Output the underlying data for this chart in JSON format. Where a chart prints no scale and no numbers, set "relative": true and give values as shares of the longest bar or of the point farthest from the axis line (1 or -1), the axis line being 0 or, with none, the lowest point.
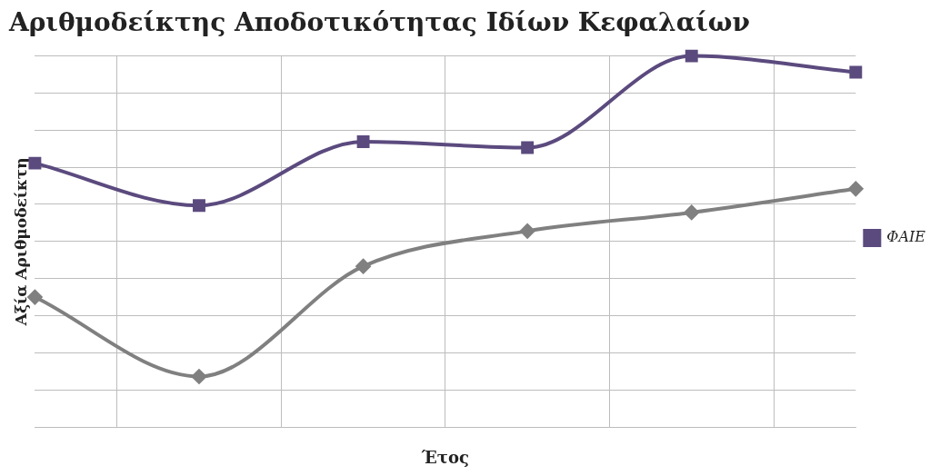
{
  "chart_data": {
    "type": "line",
    "title": "Αριθμοδείκτης Αποδοτικότητας Ιδίων Κεφαλαίων",
    "xlabel": "Έτος",
    "ylabel": "Αξία Αριθμοδείκτη",
    "categories": [
      null,
      null,
      null,
      null,
      null,
      null
    ],
    "relative": true,
    "grid": true,
    "legend": "right",
    "series": [
      {
        "name": "ΦΑΙΕ",
        "color": "#5b4a7e",
        "marker": "square",
        "values": [
          0.711,
          0.597,
          0.769,
          0.753,
          1,
          0.956
        ]
      },
      {
        "color": "#808080",
        "marker": "diamond",
        "values": [
          0.35,
          0.136,
          0.433,
          0.528,
          0.578,
          0.642
        ]
      }
    ]
  }
}
